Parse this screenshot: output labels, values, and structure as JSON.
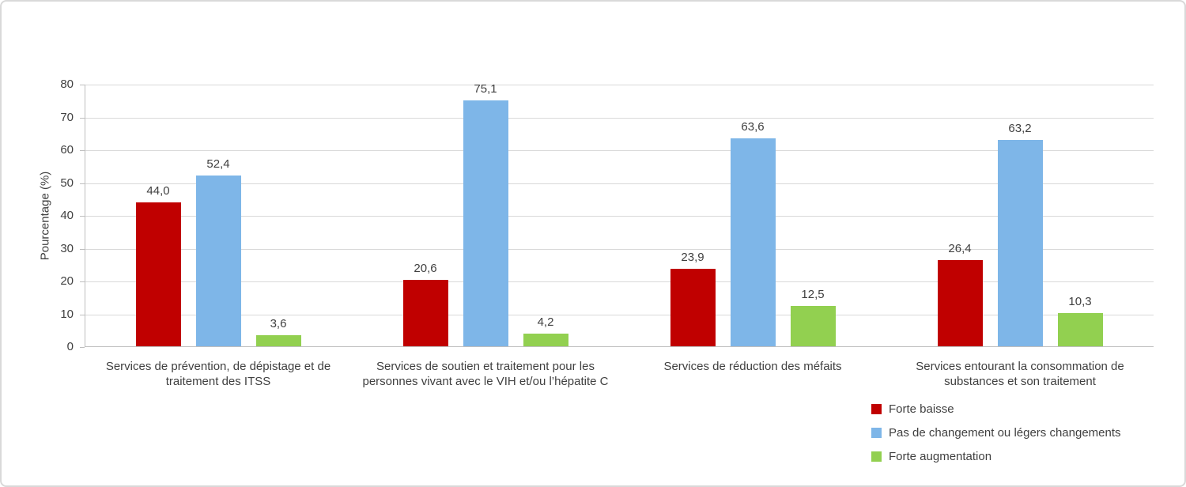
{
  "chart_data": {
    "type": "bar",
    "title": "",
    "xlabel": "",
    "ylabel": "Pourcentage (%)",
    "ylim": [
      0,
      80
    ],
    "ytick_step": 10,
    "yticks": [
      0,
      10,
      20,
      30,
      40,
      50,
      60,
      70,
      80
    ],
    "grid": true,
    "legend_position": "bottom-right",
    "categories": [
      "Services de prévention, de dépistage et de traitement des ITSS",
      "Services de soutien et traitement pour les personnes vivant avec le VIH et/ou l’hépatite C",
      "Services de réduction des méfaits",
      "Services entourant la consommation de substances et son traitement"
    ],
    "series": [
      {
        "name": "Forte baisse",
        "color": "#c00000",
        "values": [
          44.0,
          20.6,
          23.9,
          26.4
        ],
        "labels": [
          "44,0",
          "20,6",
          "23,9",
          "26,4"
        ]
      },
      {
        "name": "Pas de changement ou légers changements",
        "color": "#7eb6e8",
        "values": [
          52.4,
          75.1,
          63.6,
          63.2
        ],
        "labels": [
          "52,4",
          "75,1",
          "63,6",
          "63,2"
        ]
      },
      {
        "name": "Forte augmentation",
        "color": "#92d050",
        "values": [
          3.6,
          4.2,
          12.5,
          10.3
        ],
        "labels": [
          "3,6",
          "4,2",
          "12,5",
          "10,3"
        ]
      }
    ],
    "colors": {
      "gridline": "#d9d9d9",
      "axis": "#bfbfbf",
      "text": "#404040",
      "figure_border": "#d9d9d9"
    }
  }
}
